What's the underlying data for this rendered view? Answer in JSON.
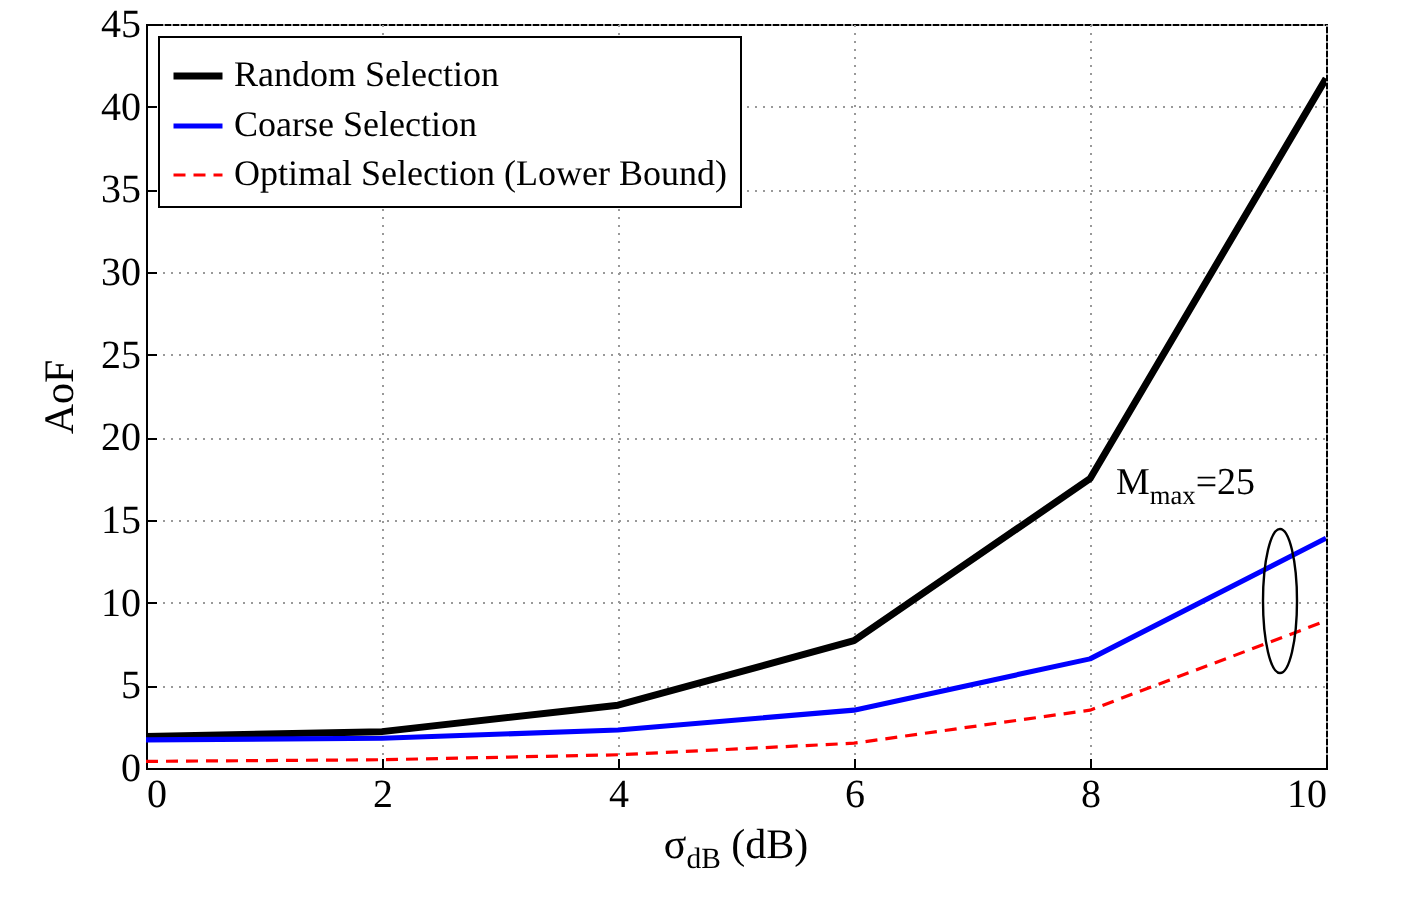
{
  "chart_data": {
    "type": "line",
    "xlabel": "σ$_{dB}$ (dB)",
    "ylabel": "AoF",
    "x": [
      0,
      2,
      4,
      6,
      8,
      10
    ],
    "series": [
      {
        "name": "Random Selection",
        "color": "#000000",
        "values": [
          1.9,
          2.2,
          3.8,
          7.7,
          17.5,
          41.7
        ]
      },
      {
        "name": "Coarse Selection",
        "color": "#0000ff",
        "values": [
          1.7,
          1.8,
          2.3,
          3.5,
          6.6,
          13.9
        ]
      },
      {
        "name": "Optimal Selection (Lower Bound)",
        "color": "#ff0000",
        "line_style": "dashed",
        "values": [
          0.4,
          0.5,
          0.8,
          1.5,
          3.5,
          8.9
        ]
      }
    ],
    "xlim": [
      0,
      10
    ],
    "xticks": [
      0,
      2,
      4,
      6,
      8,
      10
    ],
    "ylim": [
      0,
      45
    ],
    "yticks": [
      0,
      5,
      10,
      15,
      20,
      25,
      30,
      35,
      40,
      45
    ],
    "grid": true,
    "legend": "top left",
    "marker": "none",
    "line_style": "solid",
    "annotations": [
      "M$_{max}$=25"
    ]
  }
}
